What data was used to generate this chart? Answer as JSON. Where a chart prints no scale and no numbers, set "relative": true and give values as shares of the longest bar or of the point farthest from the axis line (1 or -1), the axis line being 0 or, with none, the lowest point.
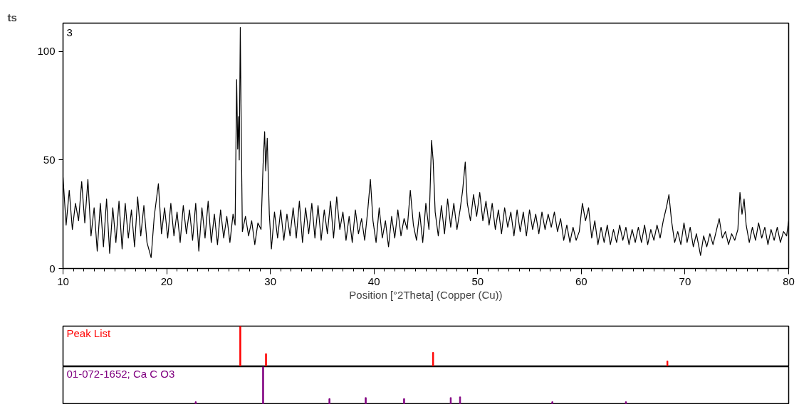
{
  "chart_data": [
    {
      "type": "line",
      "ylabel": "ts",
      "xlabel": "Position [°2Theta] (Copper (Cu))",
      "annotations": [
        "3"
      ],
      "xlim": [
        10,
        80
      ],
      "ylim": [
        0,
        113
      ],
      "xticks": [
        10,
        20,
        30,
        40,
        50,
        60,
        70,
        80
      ],
      "yticks": [
        0,
        50,
        100
      ],
      "grid": false,
      "marker": "none",
      "line_style": "solid",
      "series": [
        {
          "color": "#000000",
          "x": [
            10,
            10.3,
            10.6,
            10.9,
            11.2,
            11.5,
            11.8,
            12.1,
            12.4,
            12.7,
            13.0,
            13.3,
            13.6,
            13.9,
            14.2,
            14.5,
            14.8,
            15.1,
            15.4,
            15.7,
            16.0,
            16.3,
            16.6,
            16.9,
            17.2,
            17.5,
            17.8,
            18.1,
            18.5,
            18.8,
            19.2,
            19.5,
            19.8,
            20.1,
            20.4,
            20.7,
            21.0,
            21.3,
            21.6,
            21.9,
            22.2,
            22.5,
            22.8,
            23.1,
            23.4,
            23.7,
            24.0,
            24.3,
            24.6,
            24.9,
            25.2,
            25.5,
            25.8,
            26.1,
            26.4,
            26.6,
            26.75,
            26.85,
            26.95,
            27.0,
            27.1,
            27.2,
            27.3,
            27.6,
            27.9,
            28.2,
            28.5,
            28.8,
            29.1,
            29.3,
            29.45,
            29.55,
            29.7,
            29.9,
            30.1,
            30.4,
            30.7,
            31.0,
            31.3,
            31.6,
            31.9,
            32.2,
            32.5,
            32.8,
            33.1,
            33.4,
            33.7,
            34.0,
            34.3,
            34.6,
            34.9,
            35.2,
            35.5,
            35.8,
            36.1,
            36.4,
            36.7,
            37.0,
            37.3,
            37.6,
            37.9,
            38.2,
            38.5,
            38.8,
            39.1,
            39.4,
            39.65,
            39.9,
            40.2,
            40.5,
            40.8,
            41.1,
            41.4,
            41.7,
            42.0,
            42.3,
            42.6,
            42.9,
            43.2,
            43.5,
            43.8,
            44.1,
            44.4,
            44.7,
            45.0,
            45.3,
            45.55,
            45.7,
            45.9,
            46.2,
            46.5,
            46.8,
            47.1,
            47.4,
            47.7,
            48.0,
            48.3,
            48.55,
            48.8,
            49.0,
            49.3,
            49.6,
            49.9,
            50.2,
            50.5,
            50.8,
            51.1,
            51.4,
            51.7,
            52.0,
            52.3,
            52.6,
            52.9,
            53.2,
            53.5,
            53.8,
            54.1,
            54.4,
            54.7,
            55.0,
            55.3,
            55.6,
            55.9,
            56.2,
            56.5,
            56.8,
            57.1,
            57.4,
            57.7,
            58.0,
            58.3,
            58.6,
            58.9,
            59.2,
            59.5,
            59.8,
            60.1,
            60.4,
            60.7,
            61.0,
            61.3,
            61.6,
            61.9,
            62.2,
            62.5,
            62.8,
            63.1,
            63.4,
            63.7,
            64.0,
            64.3,
            64.6,
            64.9,
            65.2,
            65.5,
            65.8,
            66.1,
            66.4,
            66.7,
            67.0,
            67.3,
            67.6,
            67.9,
            68.2,
            68.45,
            68.7,
            69.0,
            69.3,
            69.6,
            69.9,
            70.2,
            70.5,
            70.8,
            71.1,
            71.5,
            71.8,
            72.1,
            72.4,
            72.7,
            73.0,
            73.3,
            73.6,
            73.9,
            74.2,
            74.5,
            74.8,
            75.1,
            75.3,
            75.5,
            75.7,
            75.9,
            76.2,
            76.5,
            76.8,
            77.1,
            77.4,
            77.7,
            78.0,
            78.3,
            78.6,
            78.9,
            79.2,
            79.5,
            79.8,
            80.0
          ],
          "values": [
            42,
            20,
            36,
            18,
            30,
            22,
            40,
            21,
            41,
            15,
            28,
            8,
            30,
            10,
            32,
            7,
            28,
            12,
            31,
            9,
            30,
            14,
            27,
            10,
            33,
            15,
            29,
            12,
            5,
            24,
            39,
            16,
            28,
            14,
            30,
            15,
            26,
            12,
            29,
            16,
            27,
            13,
            30,
            8,
            28,
            14,
            31,
            12,
            25,
            11,
            27,
            14,
            24,
            12,
            25,
            20,
            87,
            55,
            70,
            50,
            111,
            60,
            17,
            24,
            15,
            22,
            11,
            21,
            18,
            48,
            63,
            45,
            60,
            25,
            9,
            26,
            14,
            27,
            13,
            25,
            15,
            28,
            14,
            31,
            12,
            28,
            16,
            30,
            14,
            29,
            13,
            27,
            16,
            31,
            14,
            33,
            18,
            26,
            13,
            24,
            12,
            27,
            16,
            23,
            13,
            27,
            41,
            22,
            12,
            28,
            14,
            22,
            10,
            24,
            14,
            27,
            15,
            23,
            18,
            36,
            20,
            13,
            26,
            12,
            30,
            18,
            59,
            50,
            26,
            15,
            29,
            16,
            32,
            19,
            30,
            18,
            27,
            36,
            49,
            30,
            22,
            34,
            24,
            35,
            22,
            31,
            20,
            30,
            18,
            27,
            16,
            28,
            19,
            26,
            15,
            27,
            17,
            26,
            15,
            27,
            18,
            25,
            16,
            26,
            18,
            25,
            19,
            26,
            17,
            23,
            13,
            20,
            12,
            19,
            13,
            17,
            30,
            22,
            28,
            14,
            22,
            11,
            19,
            12,
            20,
            11,
            18,
            12,
            20,
            13,
            19,
            11,
            18,
            12,
            19,
            12,
            20,
            11,
            18,
            13,
            20,
            14,
            22,
            28,
            34,
            22,
            12,
            17,
            11,
            21,
            12,
            19,
            10,
            16,
            6,
            15,
            10,
            16,
            11,
            17,
            23,
            14,
            17,
            11,
            16,
            13,
            18,
            35,
            25,
            32,
            20,
            12,
            19,
            13,
            21,
            14,
            19,
            11,
            18,
            13,
            19,
            12,
            17,
            15,
            22
          ]
        }
      ]
    },
    {
      "type": "bar",
      "title": "Peak List",
      "relative": true,
      "tick_labels": false,
      "xlim": [
        10,
        80
      ],
      "x": [
        27.1,
        29.58,
        45.7,
        68.3
      ],
      "values": [
        1,
        0.32,
        0.35,
        0.14
      ],
      "color": "#ff0000"
    },
    {
      "type": "bar",
      "title": "01-072-1652; Ca C O3",
      "relative": true,
      "tick_labels": false,
      "xlim": [
        10,
        80
      ],
      "x": [
        22.8,
        29.3,
        35.7,
        39.2,
        42.9,
        47.4,
        48.3,
        57.2,
        64.3
      ],
      "values": [
        0.07,
        1,
        0.15,
        0.18,
        0.15,
        0.18,
        0.2,
        0.07,
        0.07
      ],
      "color": "#800080"
    }
  ]
}
